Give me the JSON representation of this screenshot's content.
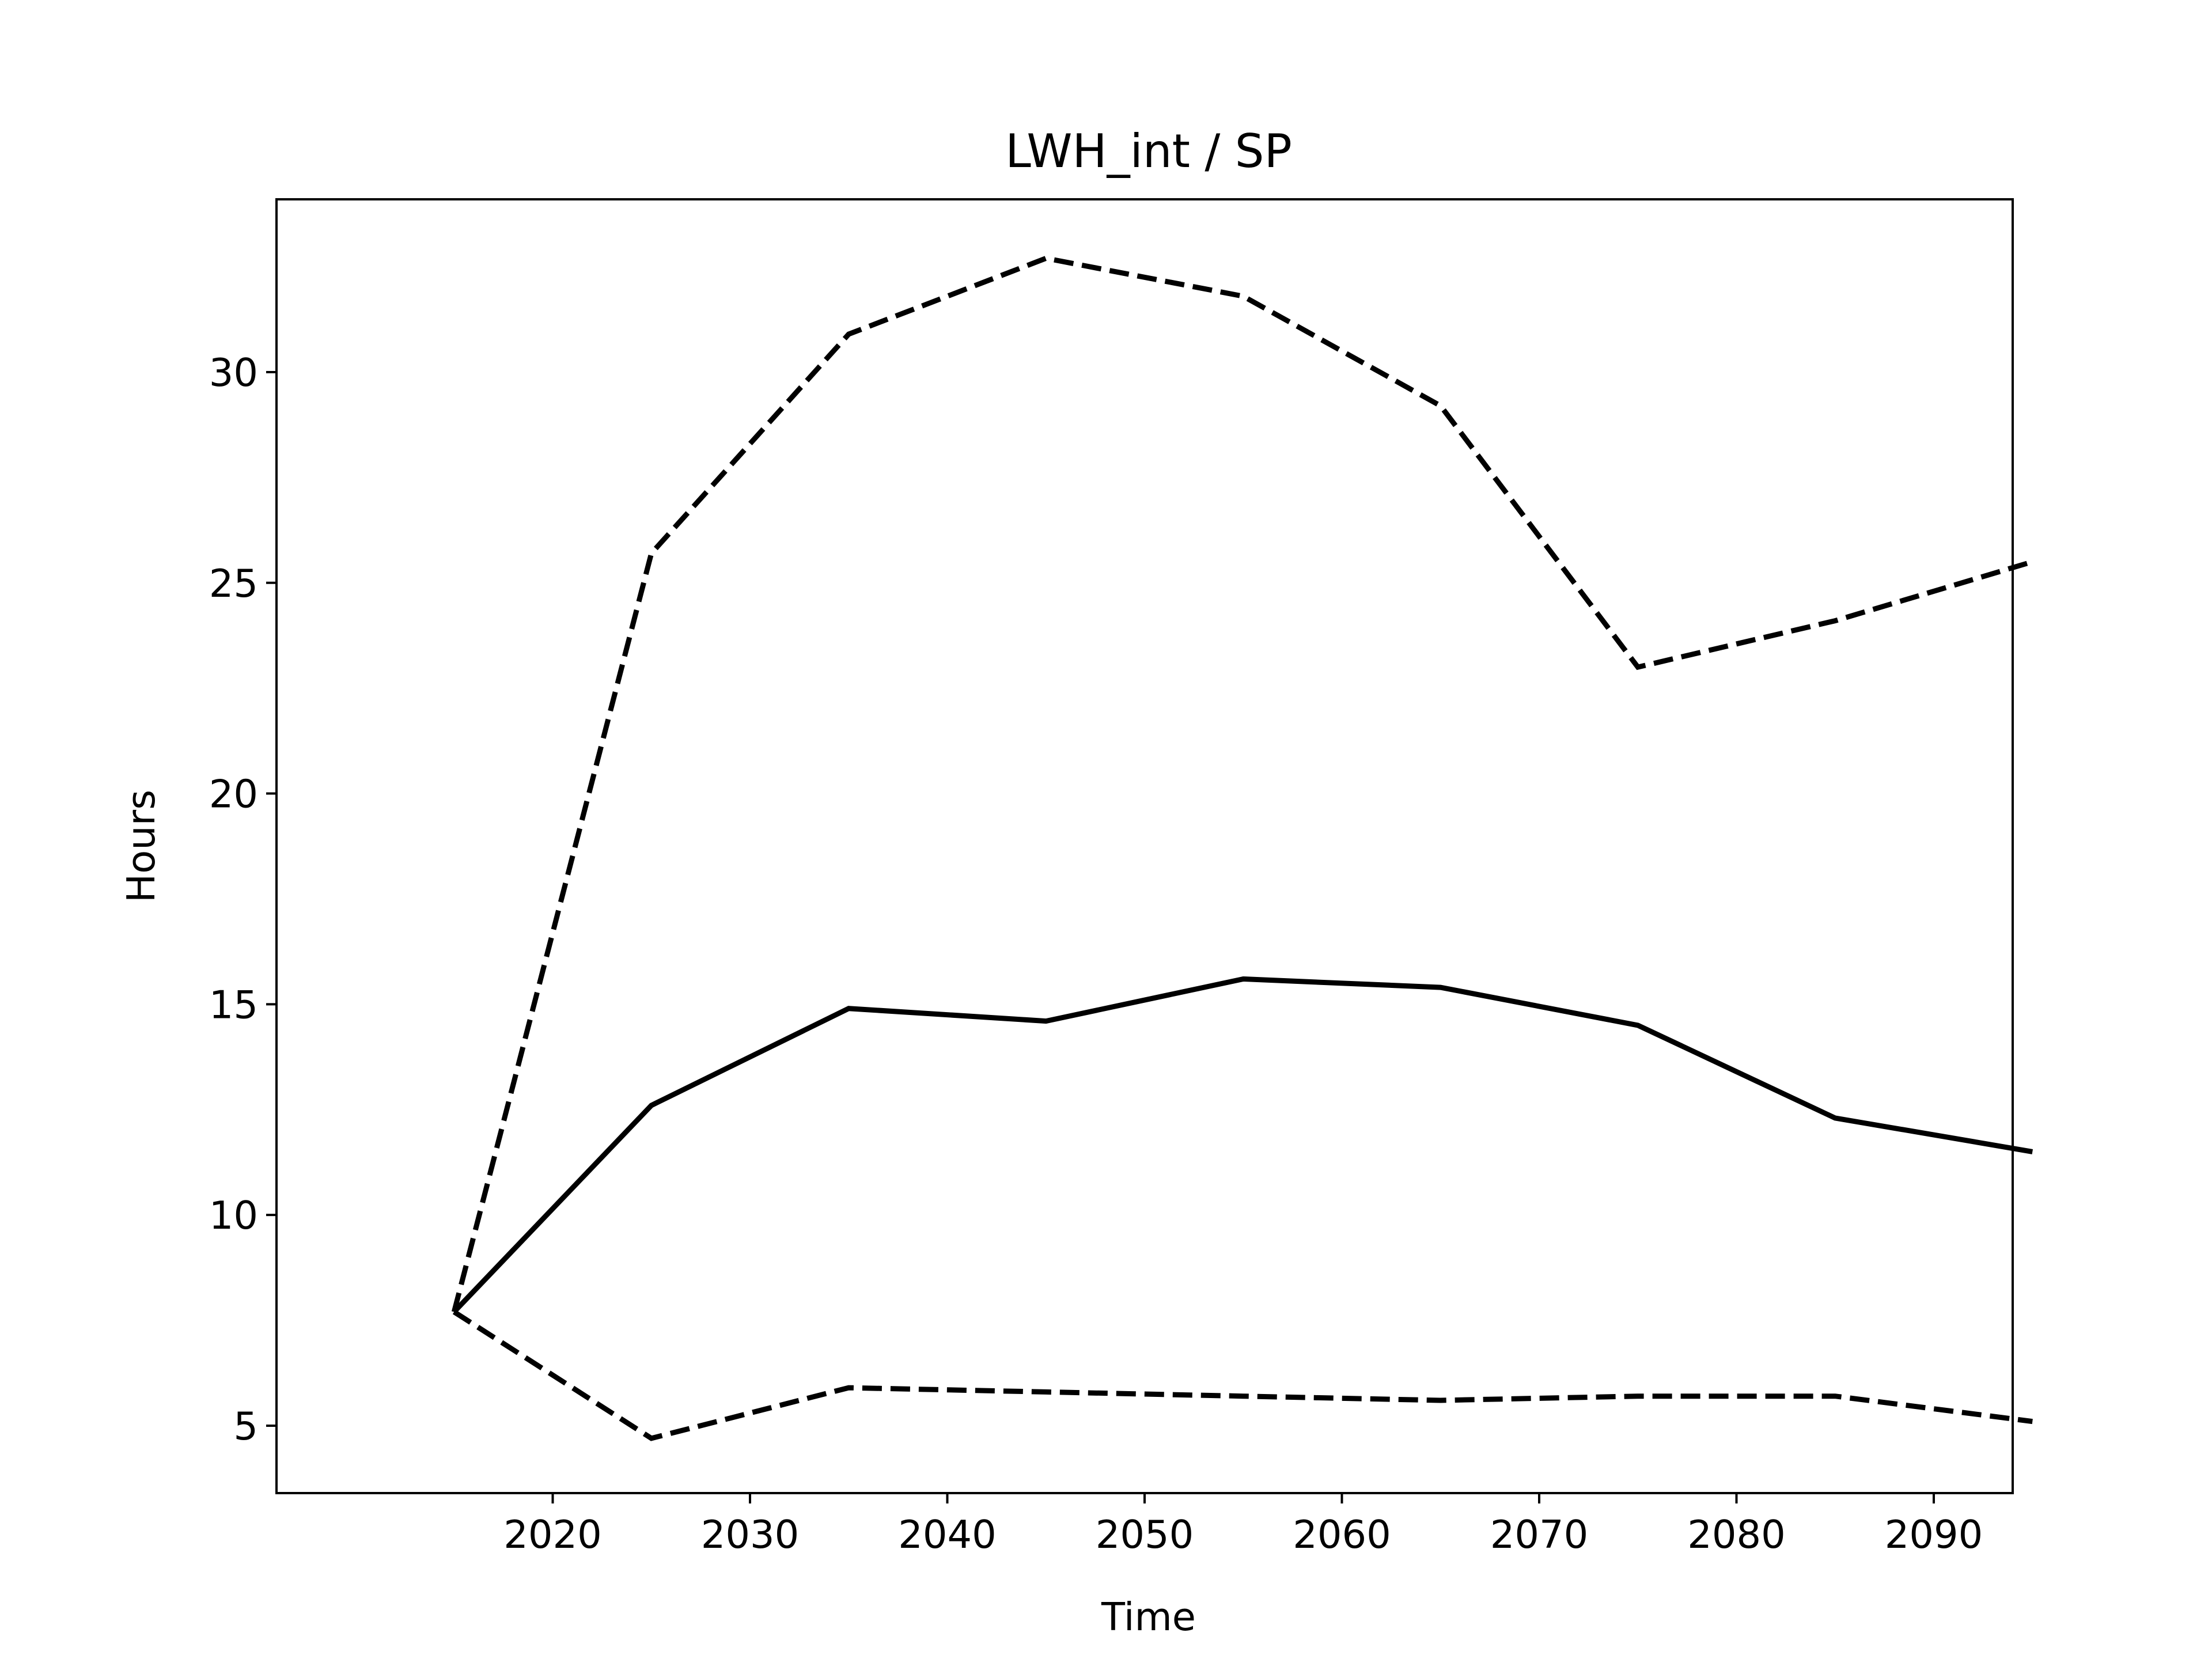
{
  "chart_data": {
    "type": "line",
    "title": "LWH_int / SP",
    "xlabel": "Time",
    "ylabel": "Hours",
    "x": [
      2015,
      2025,
      2035,
      2045,
      2055,
      2065,
      2075,
      2085,
      2095
    ],
    "xlim": [
      2006,
      2094
    ],
    "ylim": [
      3.4,
      34.1
    ],
    "xticks": [
      2020,
      2030,
      2040,
      2050,
      2060,
      2070,
      2080,
      2090
    ],
    "yticks": [
      5,
      10,
      15,
      20,
      25,
      30
    ],
    "grid": false,
    "series": [
      {
        "values": [
          7.7,
          12.6,
          14.9,
          14.6,
          15.6,
          15.4,
          14.5,
          12.3,
          11.5
        ],
        "style": "solid",
        "color": "#000000"
      },
      {
        "values": [
          7.7,
          25.7,
          30.9,
          32.7,
          31.8,
          29.2,
          23.0,
          24.1,
          25.5
        ],
        "style": "dashed",
        "color": "#000000"
      },
      {
        "values": [
          7.7,
          4.7,
          5.9,
          5.8,
          5.7,
          5.6,
          5.7,
          5.7,
          5.1
        ],
        "style": "dashed",
        "color": "#000000"
      }
    ]
  }
}
